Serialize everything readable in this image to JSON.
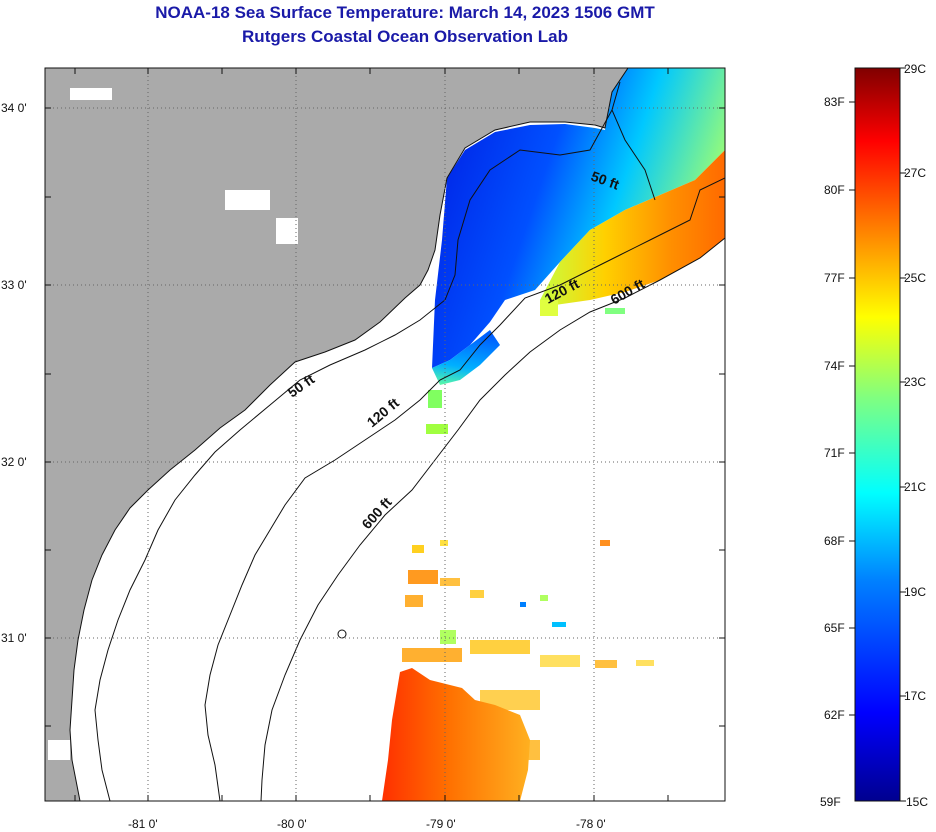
{
  "header": {
    "title": "NOAA-18 Sea Surface Temperature:  March 14, 2023 1506 GMT",
    "subtitle": "Rutgers Coastal Ocean Observation Lab"
  },
  "map": {
    "lon_labels": [
      "-81 0'",
      "-80 0'",
      "-79 0'",
      "-78 0'"
    ],
    "lat_labels": [
      "34 0'",
      "33 0'",
      "32 0'",
      "31 0'"
    ],
    "contour_labels": {
      "c50_north": "50 ft",
      "c50_south": "50 ft",
      "c120_north": "120 ft",
      "c120_south": "120 ft",
      "c600_north": "600 ft",
      "c600_south": "600 ft"
    },
    "colors": {
      "land": "#aaaaaa",
      "water_no_data": "#ffffff",
      "grid": "#666666"
    }
  },
  "colorbar": {
    "fahrenheit_labels": [
      "83F",
      "80F",
      "77F",
      "74F",
      "71F",
      "68F",
      "65F",
      "62F",
      "59F"
    ],
    "celsius_labels": [
      "29C",
      "27C",
      "25C",
      "23C",
      "21C",
      "19C",
      "17C",
      "15C"
    ],
    "range_c": [
      15,
      29
    ],
    "colors": [
      "#00008f",
      "#0000ff",
      "#0080ff",
      "#00ffff",
      "#80ff80",
      "#ffff00",
      "#ff8000",
      "#ff0000",
      "#800000"
    ]
  }
}
